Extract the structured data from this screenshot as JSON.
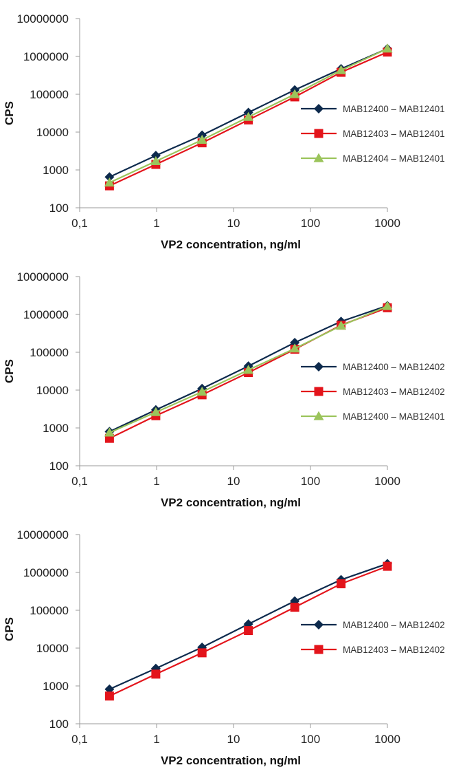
{
  "chart_data": [
    {
      "type": "line",
      "xscale": "log",
      "yscale": "log",
      "xlim": [
        0.1,
        1000
      ],
      "ylim": [
        100,
        10000000
      ],
      "xlabel": "VP2 concentration, ng/ml",
      "ylabel": "CPS",
      "x_ticks": [
        "0,1",
        "1",
        "10",
        "100",
        "1000"
      ],
      "y_ticks": [
        "100",
        "1000",
        "10000",
        "100000",
        "1000000",
        "10000000"
      ],
      "grid": false,
      "legend": "right",
      "x": [
        0.244,
        0.977,
        3.9,
        15.6,
        62.5,
        250,
        1000
      ],
      "series": [
        {
          "name": "MAB12400 – MAB12401",
          "color": "#0d2a4d",
          "marker": "diamond",
          "values": [
            650,
            2400,
            8300,
            33000,
            130000,
            470000,
            1600000
          ]
        },
        {
          "name": "MAB12403 – MAB12401",
          "color": "#e3141b",
          "marker": "square",
          "values": [
            380,
            1400,
            5200,
            21000,
            85000,
            380000,
            1300000
          ]
        },
        {
          "name": "MAB12404 – MAB12401",
          "color": "#9bc45b",
          "marker": "triangle",
          "values": [
            460,
            1700,
            6200,
            25000,
            100000,
            430000,
            1600000
          ]
        }
      ]
    },
    {
      "type": "line",
      "xscale": "log",
      "yscale": "log",
      "xlim": [
        0.1,
        1000
      ],
      "ylim": [
        100,
        10000000
      ],
      "xlabel": "VP2 concentration, ng/ml",
      "ylabel": "CPS",
      "x_ticks": [
        "0,1",
        "1",
        "10",
        "100",
        "1000"
      ],
      "y_ticks": [
        "100",
        "1000",
        "10000",
        "100000",
        "1000000",
        "10000000"
      ],
      "grid": false,
      "legend": "right",
      "x": [
        0.244,
        0.977,
        3.9,
        15.6,
        62.5,
        250,
        1000
      ],
      "series": [
        {
          "name": "MAB12400 – MAB12402",
          "color": "#0d2a4d",
          "marker": "diamond",
          "values": [
            800,
            3000,
            11000,
            43000,
            180000,
            650000,
            1700000
          ]
        },
        {
          "name": "MAB12403 – MAB12402",
          "color": "#e3141b",
          "marker": "square",
          "values": [
            530,
            2100,
            7500,
            29000,
            120000,
            520000,
            1500000
          ]
        },
        {
          "name": "MAB12400 – MAB12401",
          "color": "#9bc45b",
          "marker": "triangle",
          "values": [
            750,
            2600,
            9000,
            34000,
            125000,
            500000,
            1650000
          ]
        }
      ]
    },
    {
      "type": "line",
      "xscale": "log",
      "yscale": "log",
      "xlim": [
        0.1,
        1000
      ],
      "ylim": [
        100,
        10000000
      ],
      "xlabel": "VP2 concentration, ng/ml",
      "ylabel": "CPS",
      "x_ticks": [
        "0,1",
        "1",
        "10",
        "100",
        "1000"
      ],
      "y_ticks": [
        "100",
        "1000",
        "10000",
        "100000",
        "1000000",
        "10000000"
      ],
      "grid": false,
      "legend": "right",
      "x": [
        0.244,
        0.977,
        3.9,
        15.6,
        62.5,
        250,
        1000
      ],
      "series": [
        {
          "name": "MAB12400 – MAB12402",
          "color": "#0d2a4d",
          "marker": "diamond",
          "values": [
            820,
            2900,
            10500,
            43000,
            175000,
            640000,
            1700000
          ]
        },
        {
          "name": "MAB12403 – MAB12402",
          "color": "#e3141b",
          "marker": "square",
          "values": [
            540,
            2050,
            7500,
            29000,
            120000,
            500000,
            1450000
          ]
        }
      ]
    }
  ]
}
